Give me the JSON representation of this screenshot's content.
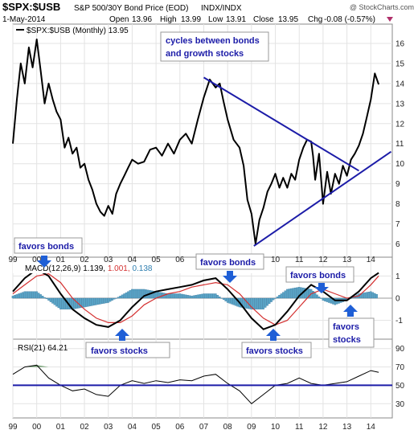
{
  "header": {
    "symbol": "$SPX:$USB",
    "description": "S&P 500/30Y Bond Price (EOD)",
    "exchange": "INDX/INDX",
    "watermark": "@ StockCharts.com",
    "date": "1-May-2014",
    "open_label": "Open",
    "open": "13.96",
    "high_label": "High",
    "high": "13.99",
    "low_label": "Low",
    "low": "13.91",
    "close_label": "Close",
    "close": "13.95",
    "chg_label": "Chg",
    "chg": "-0.08 (-0.57%)"
  },
  "colors": {
    "price_line": "#000000",
    "trendline": "#1c1ca8",
    "annotation_text": "#1c1ca8",
    "arrow": "#1f5fd6",
    "macd_signal": "#d43030",
    "histogram": "#5aa6c8",
    "histogram_edge": "#2f6f98",
    "rsi_fill": "#3a7a3a",
    "down_marker": "#b0306a",
    "axis_text": "#222222"
  },
  "annotations": {
    "top_note_line1": "cycles between bonds",
    "top_note_line2": "and growth stocks",
    "favors_bonds_1": "favors bonds",
    "favors_bonds_2": "favors bonds",
    "favors_bonds_3": "favors bonds",
    "favors_stocks_1": "favors stocks",
    "favors_stocks_2": "favors stocks",
    "favors_stocks_3_line1": "favors",
    "favors_stocks_3_line2": "stocks"
  },
  "chart_data": [
    {
      "type": "line",
      "panel": "price",
      "legend": "$SPX:$USB (Monthly) 13.95",
      "x_ticks": [
        "99",
        "00",
        "01",
        "02",
        "03",
        "04",
        "05",
        "06",
        "07",
        "08",
        "09",
        "10",
        "11",
        "12",
        "13",
        "14"
      ],
      "ylim": [
        5.5,
        16.8
      ],
      "y_ticks": [
        6,
        7,
        8,
        9,
        10,
        11,
        12,
        13,
        14,
        15,
        16
      ],
      "series": [
        {
          "x": [
            1999.0,
            1999.17,
            1999.33,
            1999.5,
            1999.67,
            1999.83,
            2000.0,
            2000.17,
            2000.33,
            2000.5,
            2000.67,
            2000.83,
            2001.0,
            2001.17,
            2001.33,
            2001.5,
            2001.67,
            2001.83,
            2002.0,
            2002.17,
            2002.33,
            2002.5,
            2002.67,
            2002.83,
            2003.0,
            2003.17,
            2003.33,
            2003.5,
            2003.67,
            2003.83,
            2004.0,
            2004.25,
            2004.5,
            2004.75,
            2005.0,
            2005.25,
            2005.5,
            2005.75,
            2006.0,
            2006.25,
            2006.5,
            2006.75,
            2007.0,
            2007.25,
            2007.5,
            2007.67,
            2007.83,
            2008.0,
            2008.25,
            2008.5,
            2008.67,
            2008.83,
            2009.0,
            2009.17,
            2009.33,
            2009.5,
            2009.67,
            2009.83,
            2010.0,
            2010.17,
            2010.33,
            2010.5,
            2010.67,
            2010.83,
            2011.0,
            2011.17,
            2011.33,
            2011.5,
            2011.58,
            2011.67,
            2011.83,
            2012.0,
            2012.17,
            2012.33,
            2012.5,
            2012.67,
            2012.83,
            2013.0,
            2013.17,
            2013.33,
            2013.5,
            2013.67,
            2013.83,
            2014.0,
            2014.17,
            2014.33
          ],
          "y": [
            11.0,
            13.2,
            15.0,
            14.0,
            15.8,
            14.8,
            16.2,
            14.6,
            13.0,
            14.0,
            13.2,
            12.6,
            12.2,
            10.8,
            11.3,
            10.5,
            10.8,
            9.8,
            10.0,
            9.2,
            8.7,
            8.0,
            7.6,
            7.4,
            7.9,
            7.5,
            8.5,
            9.0,
            9.4,
            9.8,
            10.2,
            10.0,
            10.1,
            10.7,
            10.8,
            10.4,
            11.0,
            10.5,
            11.2,
            11.5,
            11.0,
            12.2,
            13.3,
            14.2,
            13.8,
            14.0,
            13.1,
            12.2,
            11.2,
            10.8,
            9.9,
            8.2,
            7.5,
            6.0,
            7.2,
            7.8,
            8.6,
            9.0,
            9.5,
            8.8,
            9.3,
            8.8,
            9.5,
            9.2,
            10.2,
            10.8,
            11.2,
            11.1,
            10.4,
            9.2,
            10.5,
            8.0,
            9.6,
            8.5,
            9.5,
            9.0,
            9.9,
            9.4,
            10.2,
            10.5,
            10.9,
            11.5,
            12.3,
            13.2,
            14.5,
            13.95
          ]
        }
      ],
      "trendlines": [
        {
          "x": [
            2007.0,
            2013.5
          ],
          "y": [
            14.3,
            9.65
          ]
        },
        {
          "x": [
            2009.1,
            2014.85
          ],
          "y": [
            5.9,
            10.6
          ]
        }
      ]
    },
    {
      "type": "line",
      "panel": "macd",
      "legend": "MACD(12,26,9) 1.139, 1.001, 0.138",
      "legend_parts": [
        "MACD(12,26,9) 1.139,",
        "1.001,",
        "0.138"
      ],
      "ylim": [
        -1.7,
        1.7
      ],
      "y_ticks": [
        1,
        0,
        -1
      ],
      "series": [
        {
          "name": "MACD",
          "x": [
            1999.0,
            1999.5,
            2000.0,
            2000.5,
            2001.0,
            2001.5,
            2002.0,
            2002.5,
            2003.0,
            2003.5,
            2004.0,
            2004.5,
            2005.0,
            2005.5,
            2006.0,
            2006.5,
            2007.0,
            2007.5,
            2008.0,
            2008.5,
            2009.0,
            2009.5,
            2010.0,
            2010.5,
            2011.0,
            2011.5,
            2012.0,
            2012.5,
            2013.0,
            2013.5,
            2014.0,
            2014.33
          ],
          "y": [
            0.3,
            0.9,
            1.3,
            1.0,
            0.2,
            -0.5,
            -0.9,
            -1.2,
            -1.3,
            -1.0,
            -0.4,
            0.1,
            0.3,
            0.4,
            0.5,
            0.6,
            0.8,
            0.9,
            0.4,
            -0.2,
            -0.9,
            -1.4,
            -1.2,
            -0.6,
            0.1,
            0.6,
            0.3,
            -0.1,
            -0.1,
            0.3,
            0.9,
            1.139
          ]
        },
        {
          "name": "Signal",
          "x": [
            1999.0,
            1999.5,
            2000.0,
            2000.5,
            2001.0,
            2001.5,
            2002.0,
            2002.5,
            2003.0,
            2003.5,
            2004.0,
            2004.5,
            2005.0,
            2005.5,
            2006.0,
            2006.5,
            2007.0,
            2007.5,
            2008.0,
            2008.5,
            2009.0,
            2009.5,
            2010.0,
            2010.5,
            2011.0,
            2011.5,
            2012.0,
            2012.5,
            2013.0,
            2013.5,
            2014.0,
            2014.33
          ],
          "y": [
            0.2,
            0.6,
            1.0,
            1.1,
            0.7,
            0.0,
            -0.5,
            -0.9,
            -1.1,
            -1.1,
            -0.8,
            -0.3,
            0.0,
            0.2,
            0.3,
            0.5,
            0.6,
            0.7,
            0.6,
            0.2,
            -0.4,
            -0.9,
            -1.2,
            -1.0,
            -0.4,
            0.2,
            0.4,
            0.2,
            0.0,
            0.1,
            0.6,
            1.001
          ]
        },
        {
          "name": "Histogram",
          "x": [
            1999.0,
            1999.5,
            2000.0,
            2000.5,
            2001.0,
            2001.5,
            2002.0,
            2002.5,
            2003.0,
            2003.5,
            2004.0,
            2004.5,
            2005.0,
            2005.5,
            2006.0,
            2006.5,
            2007.0,
            2007.5,
            2008.0,
            2008.5,
            2009.0,
            2009.5,
            2010.0,
            2010.5,
            2011.0,
            2011.5,
            2012.0,
            2012.5,
            2013.0,
            2013.5,
            2014.0,
            2014.33
          ],
          "y": [
            0.1,
            0.3,
            0.3,
            -0.1,
            -0.5,
            -0.5,
            -0.4,
            -0.3,
            -0.2,
            0.1,
            0.4,
            0.4,
            0.3,
            0.2,
            0.2,
            0.1,
            0.2,
            0.2,
            -0.2,
            -0.4,
            -0.5,
            -0.5,
            0.0,
            0.4,
            0.5,
            0.4,
            -0.1,
            -0.3,
            -0.1,
            0.2,
            0.3,
            0.138
          ]
        }
      ]
    },
    {
      "type": "line",
      "panel": "rsi",
      "legend": "RSI(21) 64.21",
      "ylim": [
        18,
        95
      ],
      "y_ticks": [
        90,
        70,
        50,
        30
      ],
      "reference_line": 50,
      "series": [
        {
          "name": "RSI(21)",
          "x": [
            1999.0,
            1999.5,
            2000.0,
            2000.5,
            2001.0,
            2001.5,
            2002.0,
            2002.5,
            2003.0,
            2003.5,
            2004.0,
            2004.5,
            2005.0,
            2005.5,
            2006.0,
            2006.5,
            2007.0,
            2007.5,
            2008.0,
            2008.5,
            2009.0,
            2009.5,
            2010.0,
            2010.5,
            2011.0,
            2011.5,
            2012.0,
            2012.5,
            2013.0,
            2013.5,
            2014.0,
            2014.33
          ],
          "y": [
            62,
            70,
            72,
            58,
            50,
            44,
            46,
            40,
            38,
            50,
            55,
            52,
            55,
            53,
            56,
            55,
            60,
            62,
            52,
            44,
            30,
            40,
            50,
            52,
            58,
            52,
            50,
            52,
            54,
            60,
            66,
            64.21
          ]
        }
      ]
    }
  ]
}
